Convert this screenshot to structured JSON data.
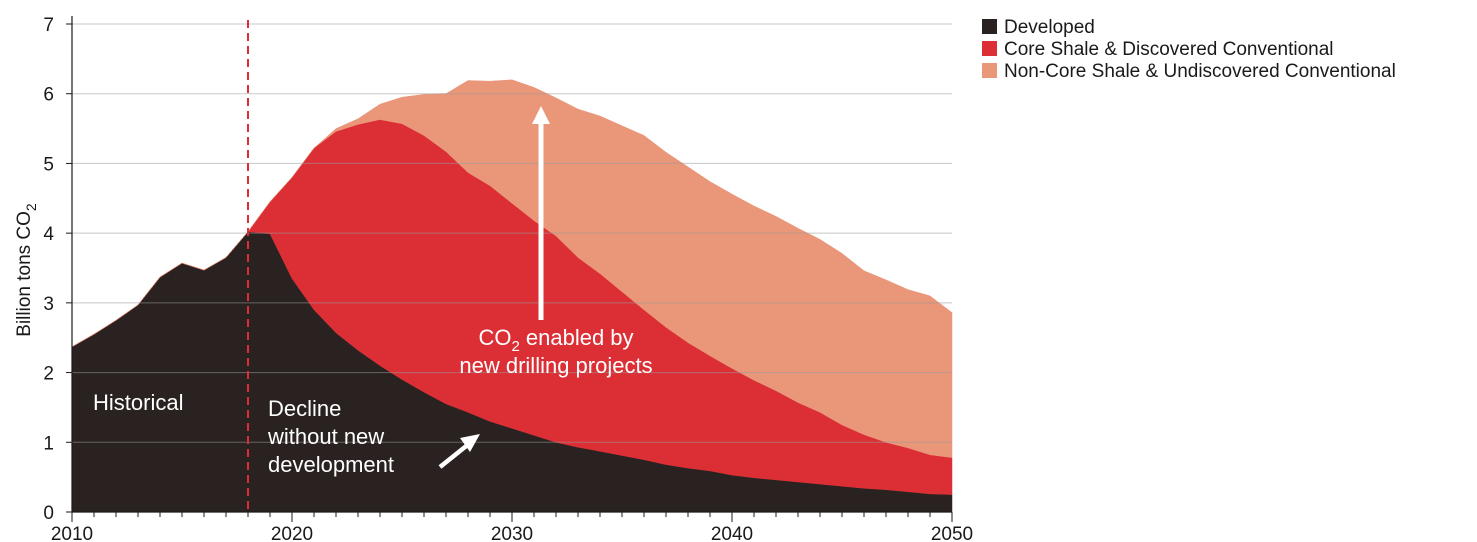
{
  "chart_data": {
    "type": "area",
    "stacked": true,
    "title": "",
    "xlabel": "",
    "ylabel": "Billion tons CO",
    "ylabel_subscript": "2",
    "xlim": [
      2010,
      2050
    ],
    "ylim": [
      0,
      7
    ],
    "x_ticks": [
      2010,
      2020,
      2030,
      2040,
      2050
    ],
    "x_tick_labels": [
      "2010",
      "2020",
      "2030",
      "2040",
      "2050"
    ],
    "y_ticks": [
      0,
      1,
      2,
      3,
      4,
      5,
      6,
      7
    ],
    "y_tick_labels": [
      "0",
      "1",
      "2",
      "3",
      "4",
      "5",
      "6",
      "7"
    ],
    "grid": "horizontal",
    "legend_position": "top-right",
    "series": [
      {
        "name": "Developed",
        "color": "#2a2220",
        "x": [
          2010,
          2011,
          2012,
          2013,
          2014,
          2015,
          2016,
          2017,
          2018,
          2019,
          2020,
          2021,
          2022,
          2023,
          2024,
          2025,
          2026,
          2027,
          2028,
          2029,
          2030,
          2031,
          2032,
          2033,
          2034,
          2035,
          2036,
          2037,
          2038,
          2039,
          2040,
          2041,
          2042,
          2043,
          2044,
          2045,
          2046,
          2047,
          2048,
          2049,
          2050
        ],
        "values": [
          2.37,
          2.55,
          2.75,
          2.97,
          3.37,
          3.57,
          3.47,
          3.65,
          4.02,
          3.99,
          3.35,
          2.9,
          2.57,
          2.32,
          2.1,
          1.9,
          1.72,
          1.55,
          1.43,
          1.3,
          1.2,
          1.1,
          1.0,
          0.93,
          0.87,
          0.81,
          0.75,
          0.68,
          0.63,
          0.59,
          0.53,
          0.49,
          0.46,
          0.43,
          0.4,
          0.37,
          0.34,
          0.32,
          0.29,
          0.26,
          0.25
        ]
      },
      {
        "name": "Core Shale & Discovered Conventional",
        "color": "#dc2f35",
        "x": [
          2010,
          2011,
          2012,
          2013,
          2014,
          2015,
          2016,
          2017,
          2018,
          2019,
          2020,
          2021,
          2022,
          2023,
          2024,
          2025,
          2026,
          2027,
          2028,
          2029,
          2030,
          2031,
          2032,
          2033,
          2034,
          2035,
          2036,
          2037,
          2038,
          2039,
          2040,
          2041,
          2042,
          2043,
          2044,
          2045,
          2046,
          2047,
          2048,
          2049,
          2050
        ],
        "values": [
          0,
          0,
          0,
          0,
          0,
          0,
          0,
          0,
          0,
          0.46,
          1.45,
          2.32,
          2.89,
          3.24,
          3.53,
          3.67,
          3.68,
          3.62,
          3.44,
          3.38,
          3.23,
          3.08,
          2.96,
          2.72,
          2.55,
          2.35,
          2.15,
          1.97,
          1.8,
          1.65,
          1.53,
          1.4,
          1.28,
          1.14,
          1.03,
          0.88,
          0.77,
          0.68,
          0.63,
          0.56,
          0.53
        ]
      },
      {
        "name": "Non-Core Shale & Undiscovered Conventional",
        "color": "#e99679",
        "x": [
          2010,
          2011,
          2012,
          2013,
          2014,
          2015,
          2016,
          2017,
          2018,
          2019,
          2020,
          2021,
          2022,
          2023,
          2024,
          2025,
          2026,
          2027,
          2028,
          2029,
          2030,
          2031,
          2032,
          2033,
          2034,
          2035,
          2036,
          2037,
          2038,
          2039,
          2040,
          2041,
          2042,
          2043,
          2044,
          2045,
          2046,
          2047,
          2048,
          2049,
          2050
        ],
        "values": [
          0,
          0,
          0,
          0,
          0,
          0,
          0,
          0,
          0,
          0,
          0,
          0,
          0.04,
          0.08,
          0.22,
          0.38,
          0.59,
          0.83,
          1.32,
          1.5,
          1.77,
          1.91,
          1.98,
          2.13,
          2.26,
          2.38,
          2.5,
          2.51,
          2.52,
          2.5,
          2.5,
          2.5,
          2.5,
          2.5,
          2.48,
          2.46,
          2.35,
          2.33,
          2.27,
          2.28,
          2.08
        ]
      }
    ],
    "reference_line": {
      "x": 2018,
      "style": "dashed",
      "color": "#dc2f35"
    },
    "annotations": {
      "historical": "Historical",
      "decline_line1": "Decline",
      "decline_line2": "without new",
      "decline_line3": "development",
      "enabled_co2": "CO",
      "enabled_sub": "2",
      "enabled_rest": " enabled by",
      "enabled_line2": "new drilling projects"
    }
  }
}
